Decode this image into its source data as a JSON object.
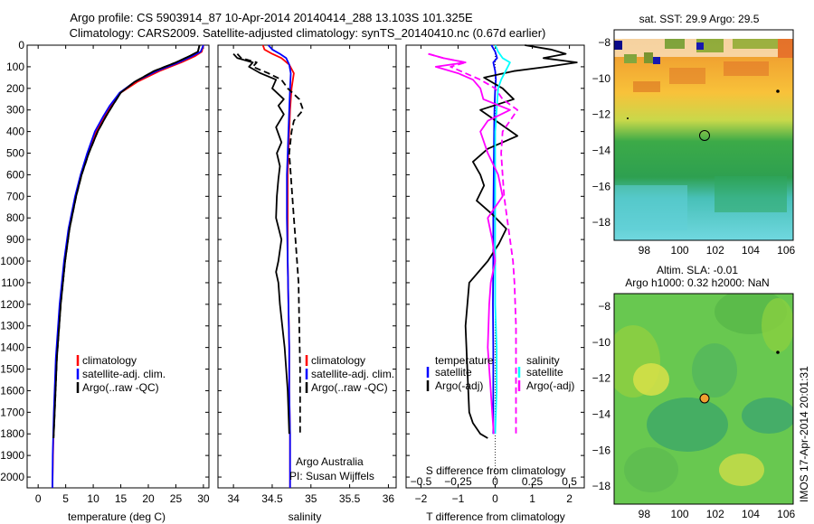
{
  "header": {
    "title_line1": "Argo profile: CS 5903914_87 10-Apr-2014 20140414_288 13.103S 101.325E",
    "title_line2": "Climatology: CARS2009. Satellite-adjusted climatology: synTS_20140410.nc (0.67d earlier)"
  },
  "colors": {
    "climatology": "#ff0000",
    "satellite": "#0000ff",
    "argo": "#000000",
    "sat_t_diff": "#00ffff",
    "argo_s_diff": "#ff00ff"
  },
  "chart_data": [
    {
      "type": "line",
      "title": "",
      "xlabel": "temperature (deg C)",
      "ylabel": "",
      "xlim": [
        -2,
        31
      ],
      "ylim": [
        2050,
        0
      ],
      "xticks": [
        0,
        5,
        10,
        15,
        20,
        25,
        30
      ],
      "yticks": [
        0,
        100,
        200,
        300,
        400,
        500,
        600,
        700,
        800,
        900,
        1000,
        1100,
        1200,
        1300,
        1400,
        1500,
        1600,
        1700,
        1800,
        1900,
        2000
      ],
      "legend": {
        "position": "center-right",
        "entries": [
          "climatology",
          "satellite-adj. clim.",
          "Argo(..raw -QC)"
        ]
      },
      "series": [
        {
          "name": "climatology",
          "style": "solid",
          "color": "#ff0000",
          "x": [
            30,
            29.7,
            28.5,
            26,
            22,
            18,
            15,
            13.2,
            12,
            10.5,
            9,
            7.8,
            6.8,
            5.6,
            4.8,
            4.0,
            3.3,
            2.9,
            2.7,
            2.6
          ],
          "y": [
            0,
            30,
            50,
            80,
            120,
            170,
            220,
            280,
            330,
            400,
            500,
            600,
            700,
            850,
            1000,
            1200,
            1450,
            1700,
            1900,
            2050
          ]
        },
        {
          "name": "satellite-adj. clim.",
          "style": "solid",
          "color": "#0000ff",
          "x": [
            30,
            29.5,
            28,
            25.5,
            21.5,
            17.5,
            14.8,
            13,
            11.8,
            10.3,
            8.9,
            7.7,
            6.7,
            5.5,
            4.7,
            3.9,
            3.2,
            2.85,
            2.65,
            2.6
          ],
          "y": [
            0,
            30,
            50,
            80,
            120,
            170,
            220,
            280,
            330,
            400,
            500,
            600,
            700,
            850,
            1000,
            1200,
            1450,
            1700,
            1900,
            2050
          ]
        },
        {
          "name": "Argo(..raw -QC)",
          "style": "solid",
          "color": "#000000",
          "x": [
            29.3,
            29,
            27.5,
            25,
            21,
            17.5,
            15,
            13.5,
            12.3,
            10.8,
            9.2,
            7.9,
            6.9,
            5.7,
            4.9,
            4.1,
            3.4,
            3.0,
            2.8
          ],
          "y": [
            0,
            30,
            50,
            80,
            120,
            170,
            220,
            280,
            330,
            400,
            500,
            600,
            700,
            850,
            1000,
            1200,
            1450,
            1700,
            1820
          ]
        },
        {
          "name": "Argo(..raw -QC)",
          "style": "dashed",
          "color": "#000000",
          "x": [
            29.3,
            29,
            27.5,
            25,
            21,
            17.5,
            15,
            13.5,
            12.3,
            10.8,
            9.2,
            7.9,
            6.9,
            5.7,
            4.9,
            4.1,
            3.4,
            3.0,
            2.8
          ],
          "y": [
            0,
            30,
            50,
            80,
            120,
            170,
            220,
            280,
            330,
            400,
            500,
            600,
            700,
            850,
            1000,
            1200,
            1450,
            1700,
            1820
          ]
        }
      ]
    },
    {
      "type": "line",
      "title": "",
      "xlabel": "salinity",
      "ylabel": "",
      "xlim": [
        33.8,
        36.1
      ],
      "ylim": [
        2050,
        0
      ],
      "xticks": [
        34,
        34.5,
        35,
        35.5,
        36
      ],
      "legend": {
        "position": "center-right",
        "entries": [
          "climatology",
          "satellite-adj. clim.",
          "Argo(..raw -QC)"
        ]
      },
      "annotations": [
        "Argo Australia",
        "PI: Susan Wijffels"
      ],
      "series": [
        {
          "name": "climatology",
          "style": "solid",
          "color": "#ff0000",
          "x": [
            34.38,
            34.4,
            34.5,
            34.62,
            34.72,
            34.78,
            34.75,
            34.73,
            34.72,
            34.71,
            34.7,
            34.7,
            34.7,
            34.71,
            34.72,
            34.72,
            34.73,
            34.73,
            34.73
          ],
          "y": [
            0,
            20,
            40,
            60,
            90,
            130,
            200,
            300,
            400,
            500,
            600,
            800,
            1000,
            1200,
            1400,
            1600,
            1800,
            2000,
            2050
          ]
        },
        {
          "name": "satellite-adj. clim.",
          "style": "solid",
          "color": "#0000ff",
          "x": [
            34.45,
            34.5,
            34.6,
            34.68,
            34.72,
            34.74,
            34.73,
            34.72,
            34.71,
            34.7,
            34.69,
            34.69,
            34.7,
            34.71,
            34.72,
            34.72,
            34.73,
            34.73
          ],
          "y": [
            0,
            20,
            40,
            60,
            90,
            130,
            200,
            300,
            400,
            500,
            600,
            800,
            1000,
            1200,
            1400,
            1600,
            1800,
            2050
          ]
        },
        {
          "name": "Argo(..raw -QC)",
          "style": "solid",
          "color": "#000000",
          "x": [
            34.0,
            34.05,
            34.25,
            34.2,
            34.35,
            34.55,
            34.5,
            34.65,
            34.58,
            34.65,
            34.55,
            34.62,
            34.56,
            34.6,
            34.58,
            34.56,
            34.55,
            34.62,
            34.58,
            34.55,
            34.58,
            34.6,
            34.66,
            34.7,
            34.72
          ],
          "y": [
            40,
            60,
            80,
            100,
            130,
            160,
            200,
            250,
            280,
            320,
            380,
            450,
            500,
            560,
            620,
            700,
            800,
            900,
            1000,
            1050,
            1100,
            1200,
            1400,
            1600,
            1800
          ]
        },
        {
          "name": "Argo(..raw -QC)",
          "style": "dashed",
          "color": "#000000",
          "x": [
            34.05,
            34.1,
            34.3,
            34.25,
            34.45,
            34.62,
            34.7,
            34.85,
            34.9,
            34.78,
            34.75,
            34.72,
            34.74,
            34.76,
            34.78,
            34.8,
            34.82,
            34.84,
            34.85,
            34.86,
            34.86
          ],
          "y": [
            40,
            60,
            80,
            100,
            130,
            160,
            200,
            250,
            300,
            350,
            400,
            500,
            600,
            700,
            800,
            900,
            1000,
            1100,
            1300,
            1500,
            1800
          ]
        }
      ]
    },
    {
      "type": "line",
      "title": "",
      "xlabel": "T difference from climatology",
      "xlabel_top": "S difference from climatology",
      "ylabel": "",
      "xlim": [
        -2.4,
        2.4
      ],
      "xlim_salinity": [
        -0.6,
        0.6
      ],
      "ylim": [
        2050,
        0
      ],
      "xticks": [
        -2,
        -1,
        0,
        1,
        2
      ],
      "xticks_salinity": [
        -0.5,
        -0.25,
        0,
        0.25,
        0.5
      ],
      "legend": {
        "position": "center",
        "entries": [
          "temperature",
          "satellite",
          "Argo(-adj)",
          "salinity",
          "satellite",
          "Argo(-adj)"
        ]
      },
      "series": [
        {
          "name": "temperature satellite",
          "style": "solid",
          "color": "#0000ff",
          "x": [
            -0.1,
            0.0,
            0.05,
            -0.05,
            0.0,
            0.02,
            0.0,
            -0.02,
            -0.03,
            -0.04,
            -0.05,
            -0.05,
            -0.06,
            -0.05,
            -0.05,
            -0.05
          ],
          "y": [
            0,
            30,
            60,
            80,
            120,
            160,
            200,
            300,
            400,
            600,
            800,
            1000,
            1200,
            1400,
            1600,
            1800
          ]
        },
        {
          "name": "temperature Argo(-adj)",
          "style": "solid",
          "color": "#000000",
          "x": [
            0.8,
            1.5,
            1.9,
            1.3,
            2.2,
            1.4,
            0.5,
            -0.3,
            0.2,
            0.5,
            -0.4,
            0.1,
            0.6,
            -0.2,
            -0.6,
            -0.4,
            -0.3,
            -0.5,
            -0.1,
            0.3,
            0.1,
            -0.2,
            -0.7,
            -0.8,
            -0.75,
            -0.7,
            -0.6,
            -0.4,
            -0.2
          ],
          "y": [
            0,
            20,
            40,
            60,
            80,
            100,
            120,
            150,
            200,
            250,
            300,
            360,
            420,
            480,
            540,
            600,
            650,
            720,
            780,
            850,
            920,
            1000,
            1100,
            1300,
            1500,
            1700,
            1750,
            1800,
            1820
          ]
        },
        {
          "name": "salinity satellite",
          "style": "solid",
          "color": "#00ffff",
          "x": [
            0.0,
            0.02,
            0.05,
            0.1,
            0.07,
            0.04,
            0.02,
            0.01,
            0.0,
            0.0,
            0.0,
            0.0,
            0.0,
            0.01,
            0.01,
            0.0
          ],
          "y": [
            0,
            30,
            60,
            80,
            120,
            160,
            200,
            300,
            400,
            600,
            800,
            1000,
            1200,
            1400,
            1600,
            1800
          ]
        },
        {
          "name": "salinity Argo(-adj)",
          "style": "solid",
          "color": "#ff00ff",
          "x": [
            -0.45,
            -0.35,
            -0.2,
            -0.4,
            -0.25,
            -0.15,
            -0.1,
            -0.08,
            0.1,
            -0.05,
            -0.1,
            -0.05,
            0.02,
            0.05,
            -0.05,
            -0.02,
            0.0,
            -0.03,
            -0.04,
            -0.05,
            -0.03,
            -0.02,
            -0.01
          ],
          "y": [
            40,
            60,
            80,
            100,
            130,
            160,
            200,
            250,
            300,
            350,
            400,
            500,
            600,
            700,
            800,
            900,
            1000,
            1100,
            1200,
            1400,
            1600,
            1700,
            1800
          ]
        },
        {
          "name": "salinity Argo(-adj)",
          "style": "dashed",
          "color": "#ff00ff",
          "x": [
            -0.45,
            -0.35,
            -0.2,
            -0.3,
            -0.2,
            -0.1,
            0.0,
            0.05,
            0.15,
            0.1,
            0.05,
            0.04,
            0.05,
            0.06,
            0.08,
            0.1,
            0.12,
            0.13,
            0.14,
            0.14,
            0.14
          ],
          "y": [
            40,
            60,
            80,
            100,
            130,
            160,
            200,
            250,
            300,
            350,
            400,
            500,
            600,
            700,
            800,
            900,
            1000,
            1100,
            1300,
            1500,
            1800
          ]
        }
      ]
    },
    {
      "type": "heatmap",
      "title": "sat. SST: 29.9 Argo: 29.5",
      "xticks": [
        98,
        100,
        102,
        104,
        106
      ],
      "yticks": [
        -8,
        -10,
        -12,
        -14,
        -16,
        -18
      ],
      "xlim": [
        96.3,
        106.4
      ],
      "ylim": [
        -19.0,
        -7.3
      ],
      "argo_position": {
        "lon": 101.325,
        "lat": -13.103
      }
    },
    {
      "type": "heatmap",
      "title_line1": "Altim. SLA: -0.01",
      "title_line2": "Argo h1000: 0.32 h2000: NaN",
      "xticks": [
        98,
        100,
        102,
        104,
        106
      ],
      "yticks": [
        -8,
        -10,
        -12,
        -14,
        -16,
        -18
      ],
      "xlim": [
        96.3,
        106.4
      ],
      "ylim": [
        -19.0,
        -7.3
      ],
      "argo_position": {
        "lon": 101.325,
        "lat": -13.103
      }
    }
  ],
  "footer": {
    "stamp": "IMOS 17-Apr-2014 20:01:31"
  }
}
